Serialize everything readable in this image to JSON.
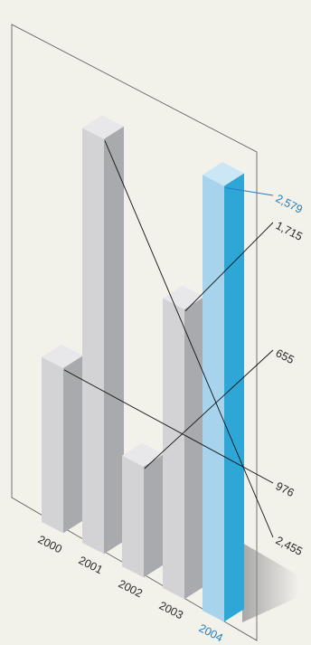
{
  "chart_data": {
    "type": "bar",
    "style": "3d-isometric",
    "categories": [
      "2000",
      "2001",
      "2002",
      "2003",
      "2004"
    ],
    "values": [
      976,
      2455,
      655,
      1715,
      2579
    ],
    "value_labels": [
      "976",
      "2,455",
      "655",
      "1,715",
      "2,579"
    ],
    "highlight_index": 4,
    "colors": {
      "background": "#f2f1ea",
      "bar_front": "#d3d3d6",
      "bar_side": "#a9aaad",
      "bar_top": "#e8e8ea",
      "highlight_front": "#a8d3ec",
      "highlight_side": "#2ea6d6",
      "highlight_top": "#cbe6f4",
      "highlight_label": "#1f7fc0",
      "leader_line": "#111111",
      "panel_line": "#555555"
    }
  }
}
